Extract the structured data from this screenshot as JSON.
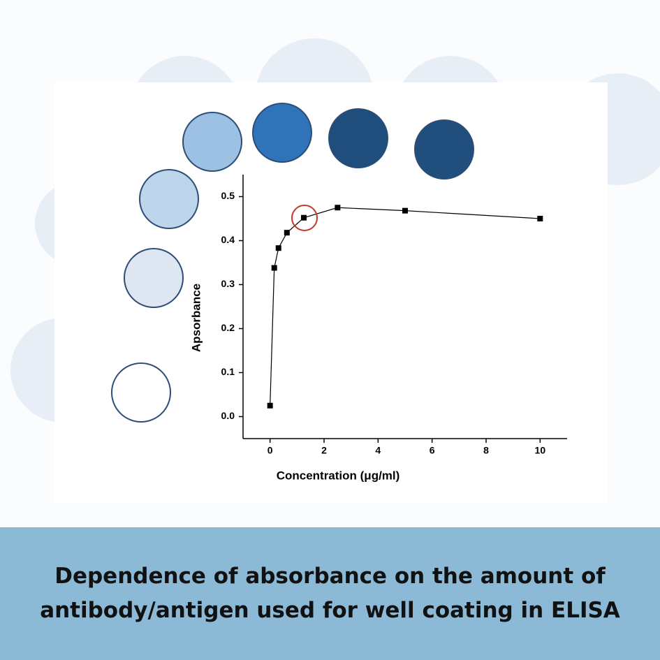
{
  "chart_data": {
    "type": "line",
    "x_label": "Concentration (μg/ml)",
    "y_label": "Apsorbance",
    "x": [
      0,
      0.156,
      0.3125,
      0.625,
      1.25,
      2.5,
      5,
      10
    ],
    "values": [
      0.025,
      0.338,
      0.383,
      0.418,
      0.452,
      0.475,
      0.468,
      0.45
    ],
    "color": "#000000",
    "xlim": [
      -1,
      11
    ],
    "ylim": [
      -0.05,
      0.55
    ],
    "xticks": [
      0,
      2,
      4,
      6,
      8,
      10
    ],
    "yticks": [
      {
        "value": 0,
        "label": "0.0"
      },
      {
        "value": 0.1,
        "label": "0.1"
      },
      {
        "value": 0.2,
        "label": "0.2"
      },
      {
        "value": 0.3,
        "label": "0.3"
      },
      {
        "value": 0.4,
        "label": "0.4"
      },
      {
        "value": 0.5,
        "label": "0.5"
      }
    ]
  },
  "caption": "Dependence of absorbance on the amount of antibody/antigen used for well coating in ELISA"
}
